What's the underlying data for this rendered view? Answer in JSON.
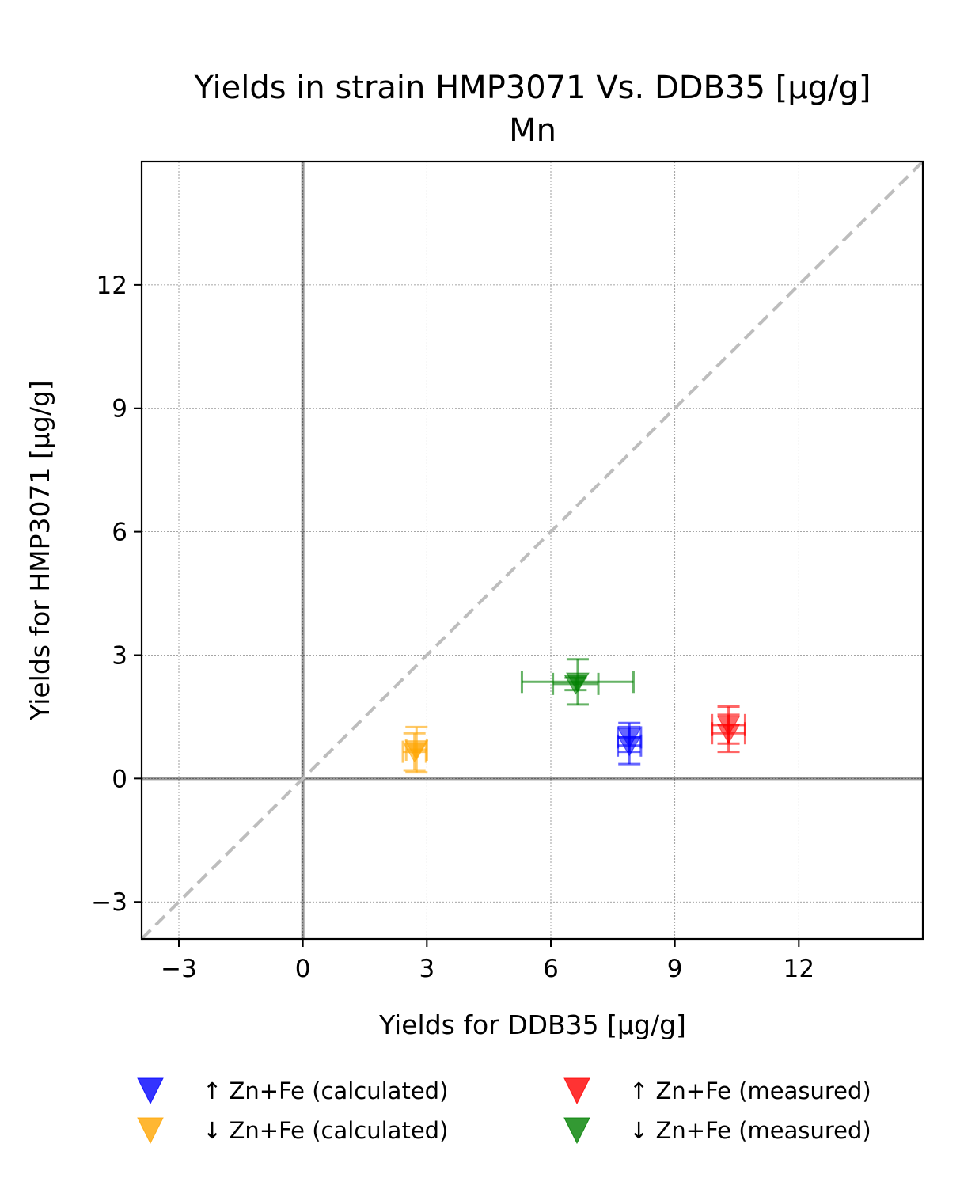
{
  "chart_data": {
    "type": "scatter",
    "title": "Yields in strain HMP3071 Vs. DDB35 [µg/g]",
    "subtitle": "Mn",
    "xlabel": "Yields for DDB35 [µg/g]",
    "ylabel": "Yields for HMP3071 [µg/g]",
    "xlim": [
      -3.9,
      15.0
    ],
    "ylim": [
      -3.9,
      15.0
    ],
    "xticks": [
      -3,
      0,
      3,
      6,
      9,
      12
    ],
    "yticks": [
      -3,
      0,
      3,
      6,
      9,
      12
    ],
    "xtick_labels": [
      "−3",
      "0",
      "3",
      "6",
      "9",
      "12"
    ],
    "ytick_labels": [
      "−3",
      "0",
      "3",
      "6",
      "9",
      "12"
    ],
    "grid": true,
    "diagonal_reference": true,
    "legend_position": "bottom",
    "series": [
      {
        "name": "↑ Zn+Fe (calculated)",
        "color": "#0000ff",
        "marker": "triangle-down",
        "points": [
          {
            "x": 7.9,
            "y": 1.0,
            "xerr": 0.28,
            "yerr": 0.35
          },
          {
            "x": 7.9,
            "y": 0.8,
            "xerr": 0.28,
            "yerr": 0.45
          }
        ]
      },
      {
        "name": "↓ Zn+Fe (calculated)",
        "color": "#ffa500",
        "marker": "triangle-down",
        "points": [
          {
            "x": 2.75,
            "y": 0.7,
            "xerr": 0.25,
            "yerr": 0.55
          },
          {
            "x": 2.7,
            "y": 0.65,
            "xerr": 0.28,
            "yerr": 0.45
          }
        ]
      },
      {
        "name": "↑ Zn+Fe (measured)",
        "color": "#ff0000",
        "marker": "triangle-down",
        "points": [
          {
            "x": 10.3,
            "y": 1.3,
            "xerr": 0.4,
            "yerr": 0.45
          },
          {
            "x": 10.3,
            "y": 1.1,
            "xerr": 0.4,
            "yerr": 0.45
          }
        ]
      },
      {
        "name": "↓ Zn+Fe (measured)",
        "color": "#008000",
        "marker": "triangle-down",
        "points": [
          {
            "x": 6.65,
            "y": 2.35,
            "xerr": 1.35,
            "yerr": 0.55
          },
          {
            "x": 6.6,
            "y": 2.3,
            "xerr": 0.55,
            "yerr": 0.15
          }
        ]
      }
    ]
  }
}
